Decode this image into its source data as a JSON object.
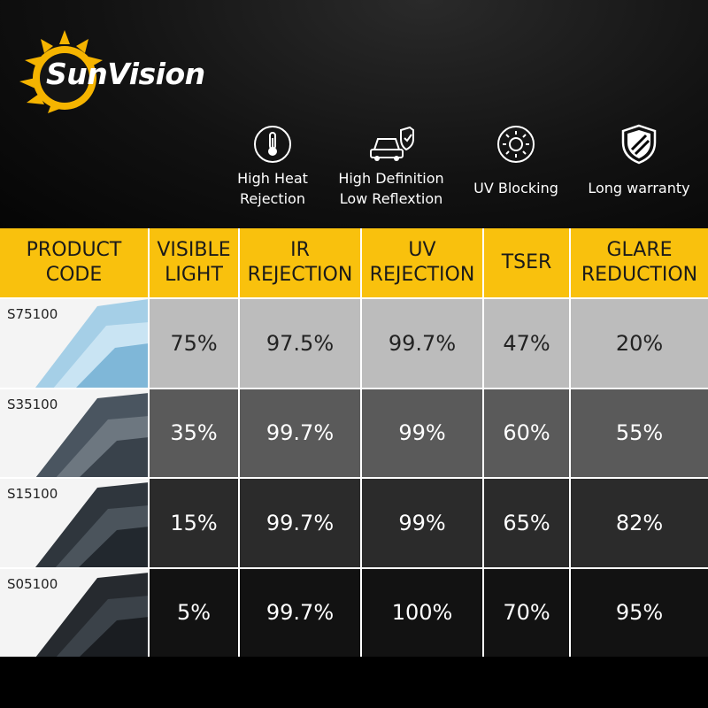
{
  "brand": {
    "name": "SunVision"
  },
  "features": [
    {
      "icon": "thermometer-icon",
      "line1": "High Heat",
      "line2": "Rejection"
    },
    {
      "icon": "car-shield-icon",
      "line1": "High Definition",
      "line2": "Low Reflextion"
    },
    {
      "icon": "sun-icon",
      "line1": "UV Blocking",
      "line2": ""
    },
    {
      "icon": "shield-icon",
      "line1": "Long warranty",
      "line2": ""
    }
  ],
  "table": {
    "headers": [
      {
        "l1": "PRODUCT",
        "l2": "CODE"
      },
      {
        "l1": "VISIBLE",
        "l2": "LIGHT"
      },
      {
        "l1": "IR",
        "l2": "REJECTION"
      },
      {
        "l1": "UV",
        "l2": "REJECTION"
      },
      {
        "l1": "TSER",
        "l2": ""
      },
      {
        "l1": "GLARE",
        "l2": "REDUCTION"
      }
    ],
    "rows": [
      {
        "code": "S75100",
        "visible_light": "75%",
        "ir_rejection": "97.5%",
        "uv_rejection": "99.7%",
        "tser": "47%",
        "glare_reduction": "20%"
      },
      {
        "code": "S35100",
        "visible_light": "35%",
        "ir_rejection": "99.7%",
        "uv_rejection": "99%",
        "tser": "60%",
        "glare_reduction": "55%"
      },
      {
        "code": "S15100",
        "visible_light": "15%",
        "ir_rejection": "99.7%",
        "uv_rejection": "99%",
        "tser": "65%",
        "glare_reduction": "82%"
      },
      {
        "code": "S05100",
        "visible_light": "5%",
        "ir_rejection": "99.7%",
        "uv_rejection": "100%",
        "tser": "70%",
        "glare_reduction": "95%"
      }
    ]
  },
  "colors": {
    "header_yellow": "#f9c10d",
    "logo_sun": "#f5b400",
    "row_shades": [
      "#bcbcbc",
      "#5a5a5a",
      "#2b2b2b",
      "#121212"
    ],
    "film_tints": [
      "#9ccbe6",
      "#4a5560",
      "#2f363d",
      "#262a2f"
    ]
  }
}
